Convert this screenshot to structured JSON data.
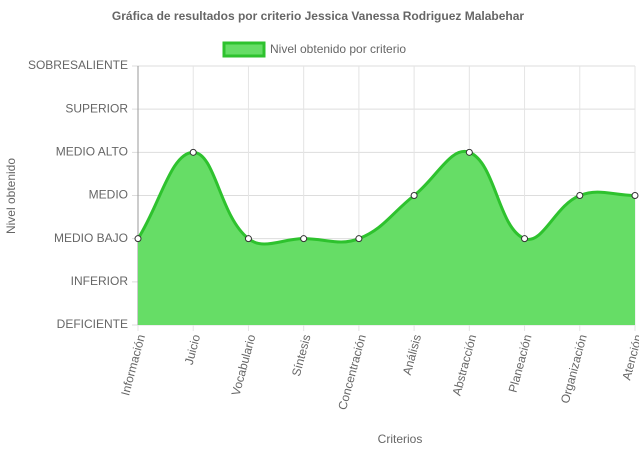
{
  "chart_data": {
    "type": "area",
    "title": "Gráfica de resultados por criterio Jessica Vanessa Rodriguez Malabehar",
    "xlabel": "Criterios",
    "ylabel": "Nivel obtenido",
    "categories": [
      "Información",
      "Juicio",
      "Vocabulario",
      "Síntesis",
      "Concentración",
      "Análisis",
      "Abstracción",
      "Planeación",
      "Organización",
      "Atención"
    ],
    "series": [
      {
        "name": "Nivel obtenido por criterio",
        "color": "#2ec22e",
        "fill": "#66dd66",
        "values": [
          2,
          4,
          2,
          2,
          2,
          3,
          4,
          2,
          3,
          3
        ]
      }
    ],
    "ylim": [
      0,
      6
    ],
    "yticks": [
      {
        "value": 0,
        "label": "DEFICIENTE"
      },
      {
        "value": 1,
        "label": "INFERIOR"
      },
      {
        "value": 2,
        "label": "MEDIO BAJO"
      },
      {
        "value": 3,
        "label": "MEDIO"
      },
      {
        "value": 4,
        "label": "MEDIO ALTO"
      },
      {
        "value": 5,
        "label": "SUPERIOR"
      },
      {
        "value": 6,
        "label": "SOBRESALIENTE"
      }
    ],
    "grid": true,
    "legend": "top"
  }
}
